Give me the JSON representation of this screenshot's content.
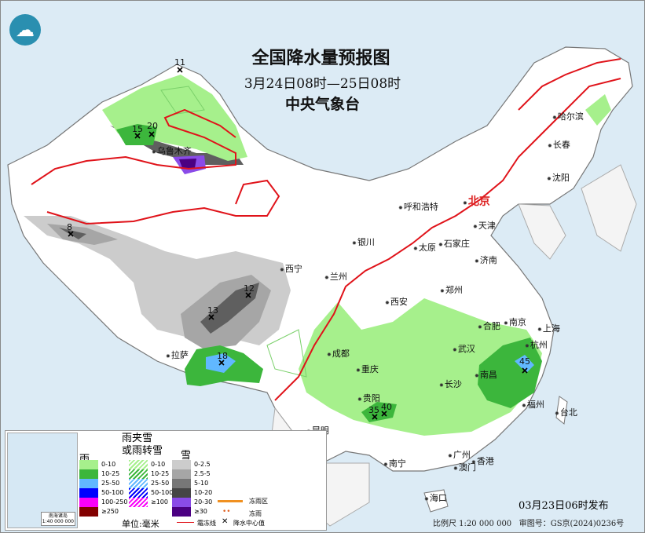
{
  "title": "全国降水量预报图",
  "period": "3月24日08时—25日08时",
  "issuer": "中央气象台",
  "logo_icon": "cma-logo-icon",
  "cities": [
    {
      "name": "哈尔滨"
    },
    {
      "name": "长春"
    },
    {
      "name": "沈阳"
    },
    {
      "name": "呼和浩特"
    },
    {
      "name": "北京"
    },
    {
      "name": "天津"
    },
    {
      "name": "石家庄"
    },
    {
      "name": "太原"
    },
    {
      "name": "银川"
    },
    {
      "name": "济南"
    },
    {
      "name": "西宁"
    },
    {
      "name": "兰州"
    },
    {
      "name": "郑州"
    },
    {
      "name": "西安"
    },
    {
      "name": "合肥"
    },
    {
      "name": "南京"
    },
    {
      "name": "上海"
    },
    {
      "name": "杭州"
    },
    {
      "name": "武汉"
    },
    {
      "name": "成都"
    },
    {
      "name": "重庆"
    },
    {
      "name": "长沙"
    },
    {
      "name": "南昌"
    },
    {
      "name": "福州"
    },
    {
      "name": "台北"
    },
    {
      "name": "拉萨"
    },
    {
      "name": "贵阳"
    },
    {
      "name": "昆明"
    },
    {
      "name": "南宁"
    },
    {
      "name": "广州"
    },
    {
      "name": "澳门"
    },
    {
      "name": "香港"
    },
    {
      "name": "海口"
    },
    {
      "name": "乌鲁木齐"
    }
  ],
  "precip_centers": [
    "11",
    "15",
    "20",
    "8",
    "12",
    "13",
    "18",
    "35",
    "40",
    "45"
  ],
  "legend": {
    "rain": {
      "title": "雨",
      "items": [
        {
          "label": "0-10",
          "color": "#a6f08c"
        },
        {
          "label": "10-25",
          "color": "#3cb63c"
        },
        {
          "label": "25-50",
          "color": "#61b8ff"
        },
        {
          "label": "50-100",
          "color": "#0000fe"
        },
        {
          "label": "100-250",
          "color": "#fa00fa"
        },
        {
          "label": "≥250",
          "color": "#820000"
        }
      ]
    },
    "mixed": {
      "title": "雨夹雪\n或雨转雪",
      "items": [
        {
          "label": "0-10",
          "color": "#a6f08c"
        },
        {
          "label": "10-25",
          "color": "#3cb63c"
        },
        {
          "label": "25-50",
          "color": "#61b8ff"
        },
        {
          "label": "50-100",
          "color": "#0000fe"
        },
        {
          "label": "≥100",
          "color": "#fa00fa"
        }
      ]
    },
    "snow": {
      "title": "雪",
      "items": [
        {
          "label": "0-2.5",
          "color": "#cccccc"
        },
        {
          "label": "2.5-5",
          "color": "#a6a6a6"
        },
        {
          "label": "5-10",
          "color": "#777777"
        },
        {
          "label": "10-20",
          "color": "#454545"
        },
        {
          "label": "20-30",
          "color": "#8a4be8"
        },
        {
          "label": "≥30",
          "color": "#4b0082"
        }
      ]
    },
    "unit": "单位:毫米",
    "freezing_rain_area": "冻雨区",
    "freezing_rain": "冻雨",
    "frost_line": "霜冻线",
    "precip_center": "降水中心值",
    "inset_caption": "南海诸岛\n1:40 000 000"
  },
  "issue_time": "03月23日06时发布",
  "scale": "比例尺 1:20 000 000",
  "map_approval": "审图号：GS京(2024)0236号"
}
